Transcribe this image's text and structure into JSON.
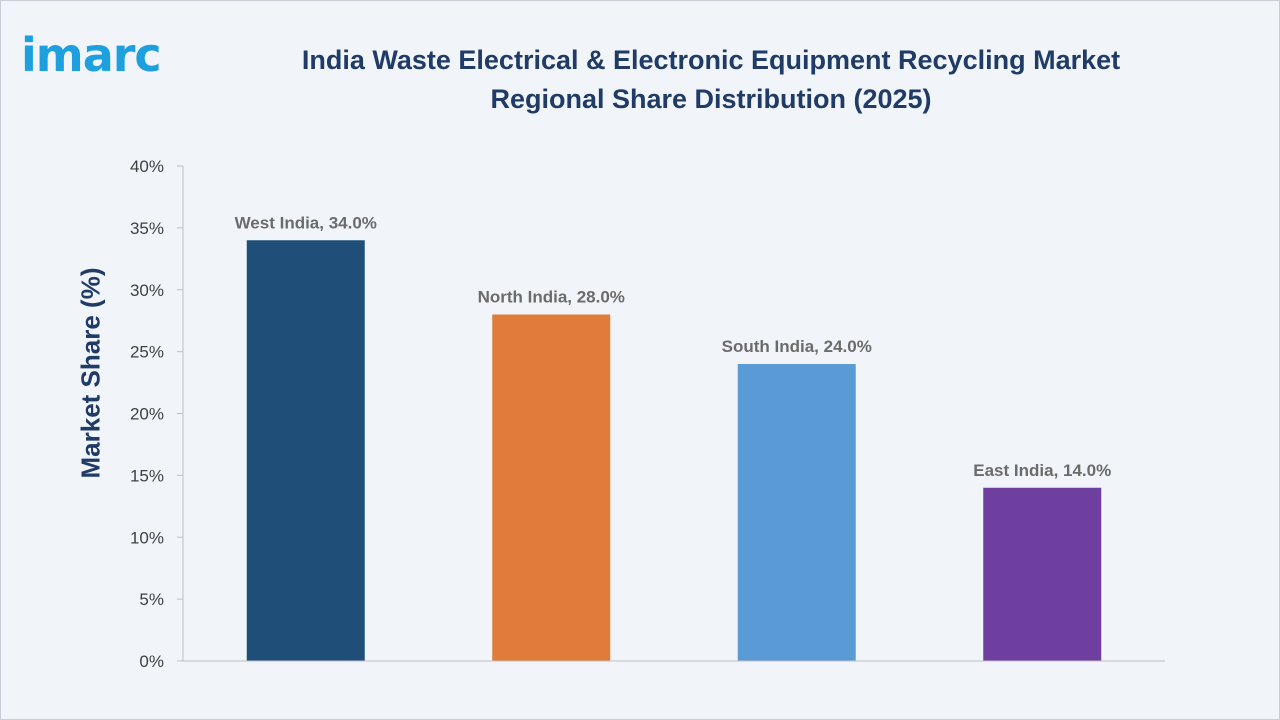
{
  "brand": {
    "logo_text": "imarc",
    "logo_color": "#1ea0df"
  },
  "chart_data": {
    "type": "bar",
    "title_line1": "India Waste Electrical & Electronic Equipment Recycling Market",
    "title_line2": "Regional Share Distribution (2025)",
    "xlabel": "",
    "ylabel": "Market Share (%)",
    "categories": [
      "West India",
      "North India",
      "South India",
      "East India"
    ],
    "values": [
      34.0,
      28.0,
      24.0,
      14.0
    ],
    "data_labels": [
      "West India, 34.0%",
      "North India, 28.0%",
      "South India, 24.0%",
      "East India, 14.0%"
    ],
    "colors": [
      "#1f4e79",
      "#e07b39",
      "#5b9bd5",
      "#6f3fa0"
    ],
    "ylim": [
      0,
      40
    ],
    "yticks": [
      0,
      5,
      10,
      15,
      20,
      25,
      30,
      35,
      40
    ],
    "ytick_labels": [
      "0%",
      "5%",
      "10%",
      "15%",
      "20%",
      "25%",
      "30%",
      "35%",
      "40%"
    ],
    "grid": false,
    "legend": "none"
  }
}
